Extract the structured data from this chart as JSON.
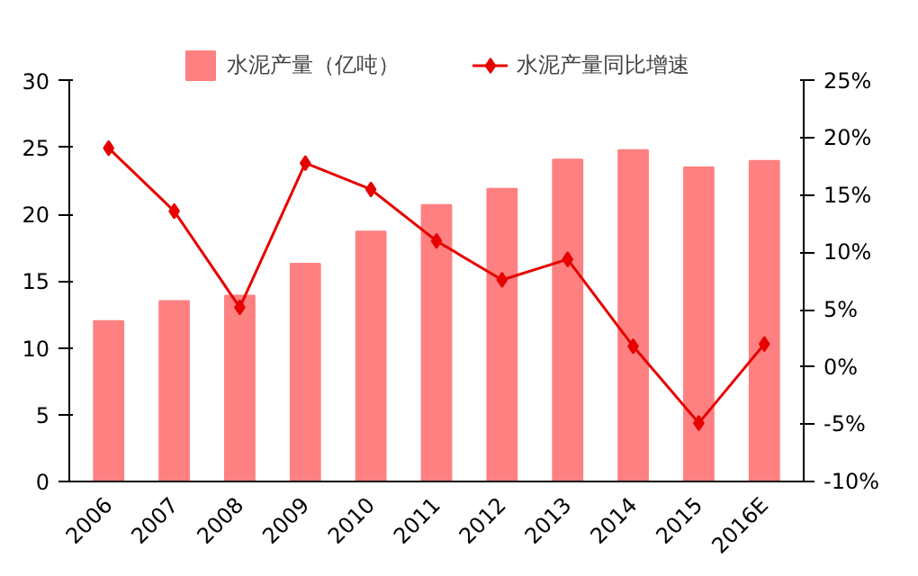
{
  "chart_data": {
    "type": "bar",
    "categories": [
      "2006",
      "2007",
      "2008",
      "2009",
      "2010",
      "2011",
      "2012",
      "2013",
      "2014",
      "2015",
      "2016E"
    ],
    "series": [
      {
        "name": "水泥产量（亿吨）",
        "color": "#ff8080",
        "values": [
          12.0,
          13.5,
          13.9,
          16.3,
          18.7,
          20.7,
          21.9,
          24.1,
          24.8,
          23.5,
          24.0
        ]
      },
      {
        "name": "水泥产量同比增速",
        "type": "line",
        "axis": "y2",
        "color": "#e60000",
        "marker": "diamond",
        "values": [
          19.1,
          13.6,
          5.2,
          17.8,
          15.5,
          11.0,
          7.6,
          9.4,
          1.8,
          -4.9,
          2.0
        ]
      }
    ],
    "ylim": [
      0,
      30
    ],
    "yticks": [
      0,
      5,
      10,
      15,
      20,
      25,
      30
    ],
    "y2lim": [
      -10,
      25
    ],
    "y2ticks": [
      {
        "value": -10,
        "label": "-10%"
      },
      {
        "value": -5,
        "label": "-5%"
      },
      {
        "value": 0,
        "label": "0%"
      },
      {
        "value": 5,
        "label": "5%"
      },
      {
        "value": 10,
        "label": "10%"
      },
      {
        "value": 15,
        "label": "15%"
      },
      {
        "value": 20,
        "label": "20%"
      },
      {
        "value": 25,
        "label": "25%"
      }
    ],
    "grid": false,
    "legend": "top"
  }
}
